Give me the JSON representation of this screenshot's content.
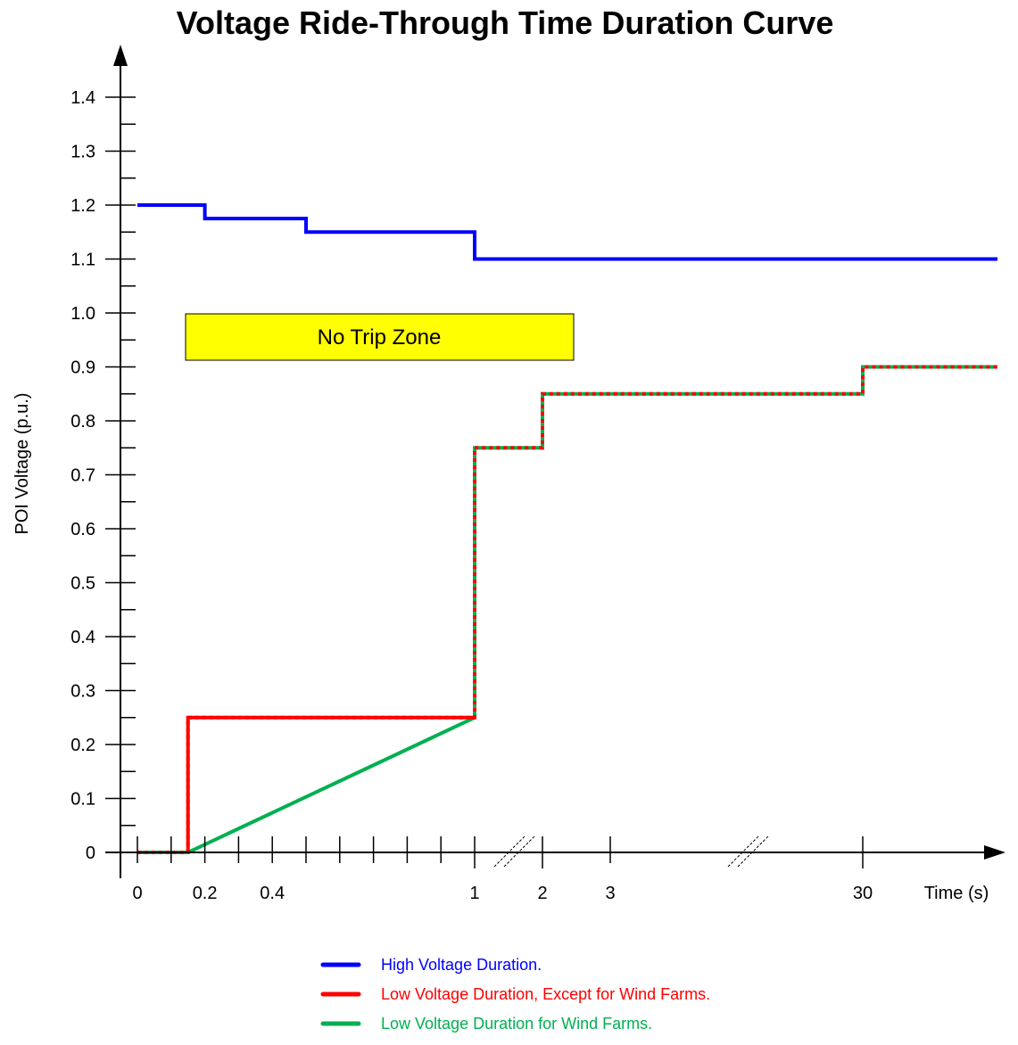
{
  "chart_data": {
    "type": "line",
    "title": "Voltage Ride-Through Time Duration Curve",
    "xlabel": "Time (s)",
    "ylabel": "POI Voltage  (p.u.)",
    "y_ticks": [
      "0",
      "0.1",
      "0.2",
      "0.3",
      "0.4",
      "0.5",
      "0.6",
      "0.7",
      "0.8",
      "0.9",
      "1.0",
      "1.1",
      "1.2",
      "1.3",
      "1.4"
    ],
    "ylim": [
      0,
      1.4
    ],
    "x_tick_labels": [
      {
        "label": "0",
        "x": 0
      },
      {
        "label": "0.2",
        "x": 0.2
      },
      {
        "label": "0.4",
        "x": 0.4
      },
      {
        "label": "1",
        "x": 1
      },
      {
        "label": "2",
        "x": 2
      },
      {
        "label": "3",
        "x": 3
      },
      {
        "label": "30",
        "x": 30
      }
    ],
    "x_axis_note": "broken axis: linear 0–1 s, then 1, 2, 3 s, then break, then 30 s",
    "annotation": "No Trip Zone",
    "annotation_color": "#ffff00",
    "series": [
      {
        "name": "High Voltage Duration.",
        "color": "#0000ff",
        "points": [
          [
            0,
            1.2
          ],
          [
            0.2,
            1.2
          ],
          [
            0.2,
            1.175
          ],
          [
            0.5,
            1.175
          ],
          [
            0.5,
            1.15
          ],
          [
            1,
            1.15
          ],
          [
            1,
            1.1
          ],
          [
            30,
            1.1
          ],
          [
            60,
            1.1
          ]
        ]
      },
      {
        "name": "Low Voltage Duration, Except for Wind Farms.",
        "color": "#ff0000",
        "points": [
          [
            0,
            0
          ],
          [
            0.15,
            0
          ],
          [
            0.15,
            0.25
          ],
          [
            1,
            0.25
          ],
          [
            1,
            0.75
          ],
          [
            2,
            0.75
          ],
          [
            2,
            0.85
          ],
          [
            30,
            0.85
          ],
          [
            30,
            0.9
          ],
          [
            60,
            0.9
          ]
        ]
      },
      {
        "name": "Low Voltage Duration for Wind Farms.",
        "color": "#00b050",
        "points": [
          [
            0,
            0
          ],
          [
            0.15,
            0
          ],
          [
            1,
            0.25
          ],
          [
            1,
            0.75
          ],
          [
            2,
            0.75
          ],
          [
            2,
            0.85
          ],
          [
            30,
            0.85
          ],
          [
            30,
            0.9
          ],
          [
            60,
            0.9
          ]
        ]
      }
    ]
  }
}
